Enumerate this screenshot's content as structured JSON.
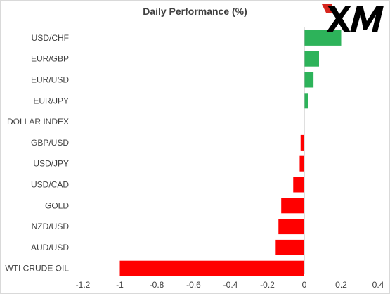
{
  "chart_data": {
    "type": "bar",
    "orientation": "horizontal",
    "title": "Daily Performance (%)",
    "categories": [
      "USD/CHF",
      "EUR/GBP",
      "EUR/USD",
      "EUR/JPY",
      "DOLLAR INDEX",
      "GBP/USD",
      "USD/JPY",
      "USD/CAD",
      "GOLD",
      "NZD/USD",
      "AUD/USD",
      "WTI CRUDE OIL"
    ],
    "values": [
      0.2,
      0.08,
      0.05,
      0.02,
      0.0,
      -0.02,
      -0.025,
      -0.06,
      -0.125,
      -0.14,
      -0.155,
      -1.0
    ],
    "xlim": [
      -1.2,
      0.4
    ],
    "xticks": [
      -1.2,
      -1,
      -0.8,
      -0.6,
      -0.4,
      -0.2,
      0,
      0.2,
      0.4
    ],
    "xtick_labels": [
      "-1.2",
      "-1",
      "-0.8",
      "-0.6",
      "-0.4",
      "-0.2",
      "0",
      "0.2",
      "0.4"
    ],
    "grid": false,
    "legend": "none",
    "colors": {
      "positive": "#2db35a",
      "negative": "#ff0000",
      "axis": "#bfbfbf"
    }
  },
  "logo": {
    "text": "XM",
    "colors": {
      "text": "#000000",
      "accent": "#d7261e"
    }
  }
}
